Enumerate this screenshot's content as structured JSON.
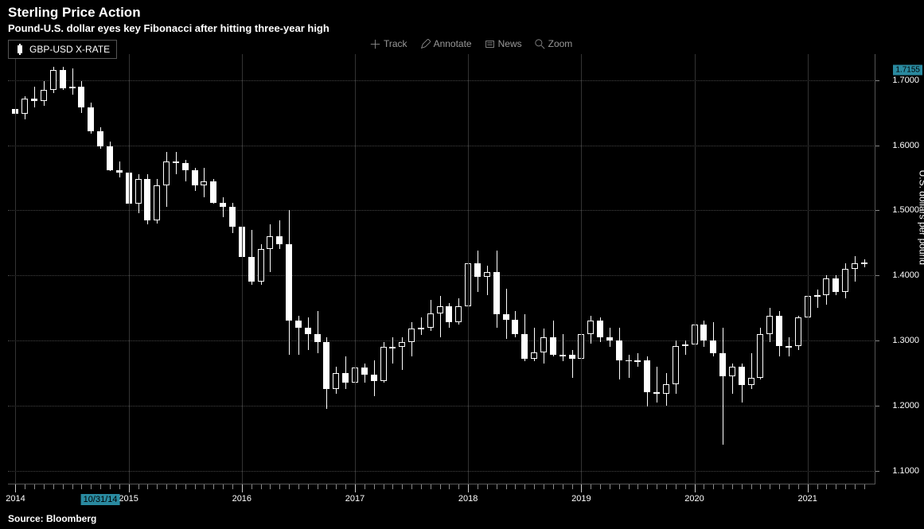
{
  "title": "Sterling Price Action",
  "subtitle": "Pound-U.S. dollar eyes key Fibonacci after hitting three-year high",
  "legend_label": "GBP-USD X-RATE",
  "toolbar": {
    "track": "Track",
    "annotate": "Annotate",
    "news": "News",
    "zoom": "Zoom"
  },
  "source": "Source: Bloomberg",
  "y_axis_label": "U.S. dollars per pound",
  "price_badge": "1.7155",
  "highlighted_date": "10/31/14",
  "chart": {
    "type": "candlestick",
    "background_color": "#000000",
    "candle_color": "#ffffff",
    "grid_color": "#444444",
    "text_color": "#ffffff",
    "ylim": [
      1.08,
      1.74
    ],
    "yticks": [
      1.1,
      1.2,
      1.3,
      1.4,
      1.5,
      1.6,
      1.7
    ],
    "ytick_labels": [
      "1.1000",
      "1.2000",
      "1.3000",
      "1.4000",
      "1.5000",
      "1.6000",
      "1.7000"
    ],
    "x_years": [
      2014,
      2015,
      2016,
      2017,
      2018,
      2019,
      2020,
      2021
    ],
    "candle_width": 8,
    "candles": [
      {
        "o": 1.656,
        "h": 1.678,
        "l": 1.633,
        "c": 1.648
      },
      {
        "o": 1.648,
        "h": 1.675,
        "l": 1.64,
        "c": 1.672
      },
      {
        "o": 1.672,
        "h": 1.69,
        "l": 1.658,
        "c": 1.668
      },
      {
        "o": 1.668,
        "h": 1.698,
        "l": 1.66,
        "c": 1.685
      },
      {
        "o": 1.685,
        "h": 1.72,
        "l": 1.68,
        "c": 1.715
      },
      {
        "o": 1.715,
        "h": 1.72,
        "l": 1.685,
        "c": 1.688
      },
      {
        "o": 1.688,
        "h": 1.718,
        "l": 1.678,
        "c": 1.69
      },
      {
        "o": 1.69,
        "h": 1.698,
        "l": 1.65,
        "c": 1.658
      },
      {
        "o": 1.658,
        "h": 1.665,
        "l": 1.618,
        "c": 1.622
      },
      {
        "o": 1.622,
        "h": 1.628,
        "l": 1.595,
        "c": 1.598
      },
      {
        "o": 1.598,
        "h": 1.605,
        "l": 1.56,
        "c": 1.562
      },
      {
        "o": 1.562,
        "h": 1.575,
        "l": 1.55,
        "c": 1.558
      },
      {
        "o": 1.558,
        "h": 1.562,
        "l": 1.498,
        "c": 1.51
      },
      {
        "o": 1.51,
        "h": 1.555,
        "l": 1.495,
        "c": 1.548
      },
      {
        "o": 1.548,
        "h": 1.555,
        "l": 1.478,
        "c": 1.485
      },
      {
        "o": 1.485,
        "h": 1.548,
        "l": 1.48,
        "c": 1.538
      },
      {
        "o": 1.538,
        "h": 1.59,
        "l": 1.505,
        "c": 1.575
      },
      {
        "o": 1.575,
        "h": 1.59,
        "l": 1.555,
        "c": 1.572
      },
      {
        "o": 1.572,
        "h": 1.578,
        "l": 1.545,
        "c": 1.562
      },
      {
        "o": 1.562,
        "h": 1.565,
        "l": 1.53,
        "c": 1.538
      },
      {
        "o": 1.538,
        "h": 1.565,
        "l": 1.52,
        "c": 1.545
      },
      {
        "o": 1.545,
        "h": 1.548,
        "l": 1.51,
        "c": 1.512
      },
      {
        "o": 1.512,
        "h": 1.52,
        "l": 1.49,
        "c": 1.505
      },
      {
        "o": 1.505,
        "h": 1.512,
        "l": 1.465,
        "c": 1.475
      },
      {
        "o": 1.475,
        "h": 1.48,
        "l": 1.415,
        "c": 1.428
      },
      {
        "o": 1.428,
        "h": 1.47,
        "l": 1.385,
        "c": 1.39
      },
      {
        "o": 1.39,
        "h": 1.448,
        "l": 1.385,
        "c": 1.44
      },
      {
        "o": 1.44,
        "h": 1.478,
        "l": 1.405,
        "c": 1.46
      },
      {
        "o": 1.46,
        "h": 1.485,
        "l": 1.44,
        "c": 1.448
      },
      {
        "o": 1.448,
        "h": 1.5,
        "l": 1.278,
        "c": 1.33
      },
      {
        "o": 1.33,
        "h": 1.338,
        "l": 1.278,
        "c": 1.32
      },
      {
        "o": 1.32,
        "h": 1.335,
        "l": 1.285,
        "c": 1.31
      },
      {
        "o": 1.31,
        "h": 1.345,
        "l": 1.28,
        "c": 1.298
      },
      {
        "o": 1.298,
        "h": 1.305,
        "l": 1.195,
        "c": 1.225
      },
      {
        "o": 1.225,
        "h": 1.26,
        "l": 1.218,
        "c": 1.25
      },
      {
        "o": 1.25,
        "h": 1.275,
        "l": 1.225,
        "c": 1.235
      },
      {
        "o": 1.235,
        "h": 1.27,
        "l": 1.2,
        "c": 1.258
      },
      {
        "o": 1.258,
        "h": 1.265,
        "l": 1.235,
        "c": 1.248
      },
      {
        "o": 1.248,
        "h": 1.27,
        "l": 1.215,
        "c": 1.238
      },
      {
        "o": 1.238,
        "h": 1.298,
        "l": 1.235,
        "c": 1.29
      },
      {
        "o": 1.29,
        "h": 1.305,
        "l": 1.265,
        "c": 1.29
      },
      {
        "o": 1.29,
        "h": 1.305,
        "l": 1.255,
        "c": 1.298
      },
      {
        "o": 1.298,
        "h": 1.328,
        "l": 1.275,
        "c": 1.318
      },
      {
        "o": 1.318,
        "h": 1.335,
        "l": 1.308,
        "c": 1.32
      },
      {
        "o": 1.32,
        "h": 1.362,
        "l": 1.315,
        "c": 1.342
      },
      {
        "o": 1.342,
        "h": 1.368,
        "l": 1.305,
        "c": 1.352
      },
      {
        "o": 1.352,
        "h": 1.358,
        "l": 1.32,
        "c": 1.328
      },
      {
        "o": 1.328,
        "h": 1.365,
        "l": 1.325,
        "c": 1.352
      },
      {
        "o": 1.352,
        "h": 1.43,
        "l": 1.342,
        "c": 1.418
      },
      {
        "o": 1.418,
        "h": 1.438,
        "l": 1.375,
        "c": 1.398
      },
      {
        "o": 1.398,
        "h": 1.415,
        "l": 1.37,
        "c": 1.405
      },
      {
        "o": 1.405,
        "h": 1.438,
        "l": 1.32,
        "c": 1.34
      },
      {
        "o": 1.34,
        "h": 1.38,
        "l": 1.302,
        "c": 1.332
      },
      {
        "o": 1.332,
        "h": 1.345,
        "l": 1.305,
        "c": 1.31
      },
      {
        "o": 1.31,
        "h": 1.34,
        "l": 1.268,
        "c": 1.272
      },
      {
        "o": 1.272,
        "h": 1.32,
        "l": 1.268,
        "c": 1.282
      },
      {
        "o": 1.282,
        "h": 1.318,
        "l": 1.265,
        "c": 1.305
      },
      {
        "o": 1.305,
        "h": 1.33,
        "l": 1.275,
        "c": 1.278
      },
      {
        "o": 1.278,
        "h": 1.31,
        "l": 1.268,
        "c": 1.278
      },
      {
        "o": 1.278,
        "h": 1.285,
        "l": 1.242,
        "c": 1.272
      },
      {
        "o": 1.272,
        "h": 1.332,
        "l": 1.258,
        "c": 1.31
      },
      {
        "o": 1.31,
        "h": 1.338,
        "l": 1.295,
        "c": 1.33
      },
      {
        "o": 1.33,
        "h": 1.335,
        "l": 1.298,
        "c": 1.305
      },
      {
        "o": 1.305,
        "h": 1.32,
        "l": 1.29,
        "c": 1.3
      },
      {
        "o": 1.3,
        "h": 1.32,
        "l": 1.24,
        "c": 1.27
      },
      {
        "o": 1.27,
        "h": 1.278,
        "l": 1.242,
        "c": 1.268
      },
      {
        "o": 1.268,
        "h": 1.28,
        "l": 1.26,
        "c": 1.27
      },
      {
        "o": 1.27,
        "h": 1.275,
        "l": 1.198,
        "c": 1.22
      },
      {
        "o": 1.22,
        "h": 1.26,
        "l": 1.205,
        "c": 1.218
      },
      {
        "o": 1.218,
        "h": 1.25,
        "l": 1.2,
        "c": 1.233
      },
      {
        "o": 1.233,
        "h": 1.3,
        "l": 1.218,
        "c": 1.292
      },
      {
        "o": 1.292,
        "h": 1.3,
        "l": 1.278,
        "c": 1.294
      },
      {
        "o": 1.294,
        "h": 1.335,
        "l": 1.28,
        "c": 1.325
      },
      {
        "o": 1.325,
        "h": 1.33,
        "l": 1.29,
        "c": 1.3
      },
      {
        "o": 1.3,
        "h": 1.328,
        "l": 1.275,
        "c": 1.28
      },
      {
        "o": 1.28,
        "h": 1.32,
        "l": 1.14,
        "c": 1.245
      },
      {
        "o": 1.245,
        "h": 1.265,
        "l": 1.218,
        "c": 1.26
      },
      {
        "o": 1.26,
        "h": 1.265,
        "l": 1.205,
        "c": 1.232
      },
      {
        "o": 1.232,
        "h": 1.28,
        "l": 1.225,
        "c": 1.242
      },
      {
        "o": 1.242,
        "h": 1.32,
        "l": 1.24,
        "c": 1.31
      },
      {
        "o": 1.31,
        "h": 1.35,
        "l": 1.298,
        "c": 1.338
      },
      {
        "o": 1.338,
        "h": 1.345,
        "l": 1.275,
        "c": 1.292
      },
      {
        "o": 1.292,
        "h": 1.305,
        "l": 1.275,
        "c": 1.292
      },
      {
        "o": 1.292,
        "h": 1.338,
        "l": 1.285,
        "c": 1.335
      },
      {
        "o": 1.335,
        "h": 1.37,
        "l": 1.315,
        "c": 1.368
      },
      {
        "o": 1.368,
        "h": 1.378,
        "l": 1.35,
        "c": 1.37
      },
      {
        "o": 1.37,
        "h": 1.4,
        "l": 1.355,
        "c": 1.395
      },
      {
        "o": 1.395,
        "h": 1.4,
        "l": 1.37,
        "c": 1.375
      },
      {
        "o": 1.375,
        "h": 1.418,
        "l": 1.365,
        "c": 1.41
      },
      {
        "o": 1.41,
        "h": 1.43,
        "l": 1.39,
        "c": 1.418
      },
      {
        "o": 1.418,
        "h": 1.425,
        "l": 1.412,
        "c": 1.42
      }
    ]
  }
}
